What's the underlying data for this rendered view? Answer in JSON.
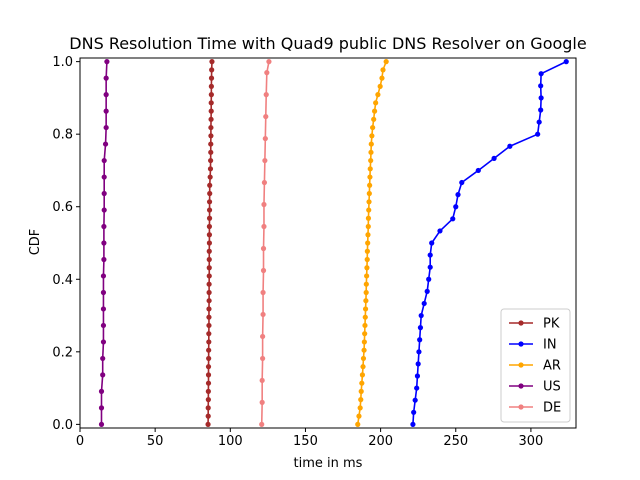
{
  "chart_data": {
    "type": "line",
    "title": "DNS Resolution Time with Quad9 public DNS Resolver on Google",
    "xlabel": "time in ms",
    "ylabel": "CDF",
    "xlim": [
      0,
      330
    ],
    "ylim": [
      -0.01,
      1.01
    ],
    "xticks": [
      0,
      50,
      100,
      150,
      200,
      250,
      300
    ],
    "yticks": [
      0.0,
      0.2,
      0.4,
      0.6,
      0.8,
      1.0
    ],
    "xtick_labels": [
      "0",
      "50",
      "100",
      "150",
      "200",
      "250",
      "300"
    ],
    "ytick_labels": [
      "0.0",
      "0.2",
      "0.4",
      "0.6",
      "0.8",
      "1.0"
    ],
    "grid": false,
    "legend_position": "lower-right",
    "series": [
      {
        "name": "PK",
        "color": "#a52a2a",
        "y": [
          0.0,
          0.0227,
          0.0455,
          0.0682,
          0.0909,
          0.1136,
          0.1364,
          0.1591,
          0.1818,
          0.2045,
          0.2273,
          0.25,
          0.2727,
          0.2955,
          0.3182,
          0.3409,
          0.3636,
          0.3864,
          0.4091,
          0.4318,
          0.4545,
          0.4773,
          0.5,
          0.5227,
          0.5455,
          0.5682,
          0.5909,
          0.6136,
          0.6364,
          0.6591,
          0.6818,
          0.7045,
          0.7273,
          0.75,
          0.7727,
          0.7955,
          0.8182,
          0.8409,
          0.8636,
          0.8864,
          0.9091,
          0.9318,
          0.9545,
          0.9773,
          1.0
        ],
        "x": [
          85.2,
          85.3,
          85.3,
          85.4,
          85.4,
          85.5,
          85.5,
          85.5,
          85.6,
          85.6,
          85.7,
          85.7,
          85.8,
          85.8,
          85.8,
          85.9,
          85.9,
          85.9,
          86.0,
          86.0,
          86.0,
          86.0,
          86.1,
          86.1,
          86.1,
          86.2,
          86.2,
          86.2,
          86.3,
          86.3,
          86.6,
          86.8,
          86.9,
          87.0,
          87.0,
          87.1,
          87.1,
          87.2,
          87.3,
          87.3,
          87.4,
          87.4,
          87.5,
          87.6,
          87.8
        ]
      },
      {
        "name": "IN",
        "color": "#0000ff",
        "y": [
          0.0,
          0.0333,
          0.0667,
          0.1,
          0.1333,
          0.1667,
          0.2,
          0.2333,
          0.2667,
          0.3,
          0.3333,
          0.3667,
          0.4,
          0.4333,
          0.4667,
          0.5,
          0.5333,
          0.5667,
          0.6,
          0.6333,
          0.6667,
          0.7,
          0.7333,
          0.7667,
          0.8,
          0.8333,
          0.8667,
          0.9,
          0.9333,
          0.9667,
          1.0
        ],
        "x": [
          221.5,
          222.0,
          223.0,
          224.0,
          224.5,
          225.0,
          225.5,
          226.0,
          226.5,
          227.0,
          229.0,
          231.0,
          232.0,
          233.0,
          233.0,
          234.0,
          239.5,
          248.0,
          250.0,
          251.5,
          254.0,
          265.0,
          275.5,
          286.0,
          304.5,
          305.5,
          306.5,
          306.8,
          306.5,
          306.8,
          323.5
        ]
      },
      {
        "name": "AR",
        "color": "#ffa500",
        "y": [
          0.0,
          0.0227,
          0.0455,
          0.0682,
          0.0909,
          0.1136,
          0.1364,
          0.1591,
          0.1818,
          0.2045,
          0.2273,
          0.25,
          0.2727,
          0.2955,
          0.3182,
          0.3409,
          0.3636,
          0.3864,
          0.4091,
          0.4318,
          0.4545,
          0.4773,
          0.5,
          0.5227,
          0.5455,
          0.5682,
          0.5909,
          0.6136,
          0.6364,
          0.6591,
          0.6818,
          0.7045,
          0.7273,
          0.75,
          0.7727,
          0.7955,
          0.8182,
          0.8409,
          0.8636,
          0.8864,
          0.9091,
          0.9318,
          0.9545,
          0.9773,
          1.0
        ],
        "x": [
          184.8,
          185.6,
          186.4,
          186.8,
          187.1,
          187.5,
          187.9,
          188.3,
          188.6,
          189.0,
          189.2,
          189.4,
          189.6,
          189.8,
          190.0,
          190.2,
          190.4,
          190.5,
          190.7,
          190.9,
          191.1,
          191.2,
          191.4,
          191.6,
          191.8,
          191.9,
          192.1,
          192.3,
          192.5,
          192.7,
          192.9,
          193.1,
          193.4,
          193.6,
          193.8,
          194.2,
          194.7,
          195.4,
          196.0,
          196.7,
          198.2,
          199.7,
          200.9,
          201.6,
          203.7
        ]
      },
      {
        "name": "US",
        "color": "#800080",
        "y": [
          0.0,
          0.0455,
          0.0909,
          0.1364,
          0.1818,
          0.2273,
          0.2727,
          0.3182,
          0.3636,
          0.4091,
          0.4545,
          0.5,
          0.5455,
          0.5909,
          0.6364,
          0.6818,
          0.7273,
          0.7727,
          0.8182,
          0.8636,
          0.9091,
          0.9545,
          1.0
        ],
        "x": [
          14.3,
          14.3,
          14.3,
          15.1,
          15.1,
          15.6,
          15.6,
          15.6,
          15.6,
          15.6,
          15.9,
          15.9,
          15.9,
          16.1,
          16.1,
          16.1,
          16.1,
          17.0,
          17.4,
          17.4,
          17.4,
          17.4,
          17.9
        ]
      },
      {
        "name": "DE",
        "color": "#f08080",
        "y": [
          0.0,
          0.0606,
          0.1212,
          0.1818,
          0.2424,
          0.303,
          0.3636,
          0.4242,
          0.4848,
          0.5455,
          0.6061,
          0.6667,
          0.7273,
          0.7879,
          0.8485,
          0.9091,
          0.9697,
          1.0
        ],
        "x": [
          120.9,
          121.2,
          121.2,
          121.5,
          121.5,
          121.8,
          121.8,
          122.1,
          122.1,
          122.4,
          122.4,
          122.7,
          123.0,
          123.3,
          123.6,
          123.9,
          124.3,
          125.7
        ]
      }
    ]
  }
}
